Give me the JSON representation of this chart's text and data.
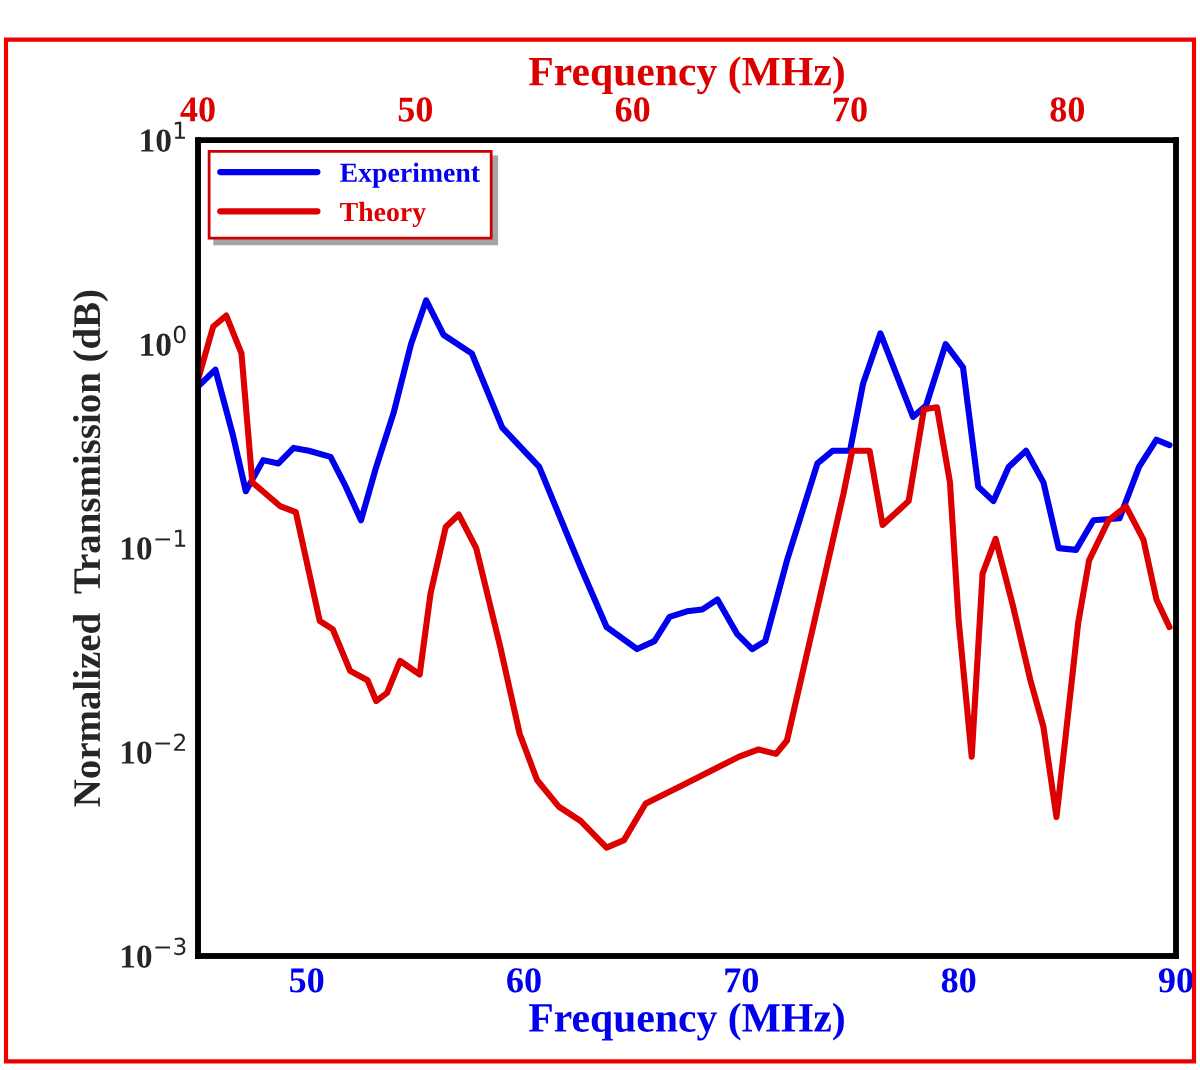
{
  "chart_data": {
    "type": "line",
    "xlabel": "Frequency (MHz)",
    "x2label": "Frequency (MHz)",
    "ylabel": "Normalized  Transmission (dB)",
    "xlim": [
      45,
      90
    ],
    "xticks": [
      50,
      60,
      70,
      80,
      90
    ],
    "x2lim": [
      40,
      85
    ],
    "x2ticks": [
      40,
      50,
      60,
      70,
      80
    ],
    "log": "y",
    "ylim": [
      0.001,
      10
    ],
    "yticks": [
      {
        "value": 0.001,
        "label": "10$^{−3}$"
      },
      {
        "value": 0.01,
        "label": "10$^{−2}$"
      },
      {
        "value": 0.1,
        "label": "10$^{−1}$"
      },
      {
        "value": 1,
        "label": "10$^{0}$"
      },
      {
        "value": 10,
        "label": "10$^{1}$"
      }
    ],
    "grid": false,
    "legend": "top left",
    "marker": "none",
    "line_style": "solid",
    "series": [
      {
        "name": "Experiment",
        "color": "#0000ee",
        "x": [
          45.0,
          45.8,
          46.6,
          47.2,
          48.0,
          48.7,
          49.4,
          50.1,
          51.1,
          51.8,
          52.5,
          53.2,
          54.0,
          54.8,
          55.5,
          56.3,
          57.6,
          59.0,
          60.7,
          62.6,
          63.8,
          65.2,
          66.0,
          66.7,
          67.5,
          68.2,
          68.9,
          69.8,
          70.5,
          71.1,
          72.1,
          73.5,
          74.2,
          75.0,
          75.6,
          76.4,
          77.9,
          78.5,
          79.4,
          80.2,
          80.9,
          81.6,
          82.3,
          83.1,
          83.9,
          84.6,
          85.4,
          86.2,
          87.4,
          88.3,
          89.1,
          89.7
        ],
        "values": [
          0.62,
          0.75,
          0.36,
          0.19,
          0.27,
          0.26,
          0.31,
          0.3,
          0.28,
          0.2,
          0.137,
          0.25,
          0.46,
          1.0,
          1.64,
          1.11,
          0.9,
          0.39,
          0.25,
          0.081,
          0.041,
          0.032,
          0.035,
          0.046,
          0.049,
          0.05,
          0.056,
          0.038,
          0.032,
          0.035,
          0.087,
          0.26,
          0.3,
          0.3,
          0.64,
          1.13,
          0.44,
          0.5,
          1.0,
          0.77,
          0.2,
          0.17,
          0.25,
          0.3,
          0.21,
          0.1,
          0.098,
          0.137,
          0.14,
          0.25,
          0.34,
          0.32
        ]
      },
      {
        "name": "Theory",
        "color": "#dd0000",
        "axis": "x2",
        "x": [
          40.0,
          40.7,
          41.3,
          42.0,
          42.5,
          43.8,
          44.5,
          45.6,
          46.2,
          47.0,
          47.8,
          48.2,
          48.7,
          49.3,
          50.2,
          50.7,
          51.4,
          52.0,
          52.8,
          53.9,
          54.8,
          55.6,
          56.6,
          57.6,
          58.8,
          59.6,
          60.6,
          62.2,
          63.7,
          64.9,
          65.8,
          66.6,
          67.1,
          68.3,
          69.7,
          70.1,
          70.9,
          71.5,
          72.7,
          73.4,
          74.0,
          74.6,
          75.0,
          75.6,
          76.1,
          76.7,
          77.5,
          78.3,
          78.9,
          79.5,
          79.9,
          80.5,
          81.0,
          81.9,
          82.7,
          83.5,
          84.1,
          84.7
        ],
        "values": [
          0.67,
          1.22,
          1.38,
          0.9,
          0.21,
          0.16,
          0.15,
          0.044,
          0.04,
          0.025,
          0.0225,
          0.0178,
          0.0195,
          0.028,
          0.024,
          0.06,
          0.127,
          0.146,
          0.1,
          0.033,
          0.0123,
          0.0073,
          0.0054,
          0.0046,
          0.0034,
          0.0037,
          0.0056,
          0.0068,
          0.0082,
          0.0095,
          0.0103,
          0.0098,
          0.0114,
          0.041,
          0.185,
          0.3,
          0.3,
          0.13,
          0.17,
          0.48,
          0.49,
          0.21,
          0.044,
          0.0095,
          0.075,
          0.111,
          0.052,
          0.0225,
          0.0133,
          0.0048,
          0.0114,
          0.043,
          0.087,
          0.137,
          0.16,
          0.11,
          0.056,
          0.041
        ]
      }
    ]
  }
}
